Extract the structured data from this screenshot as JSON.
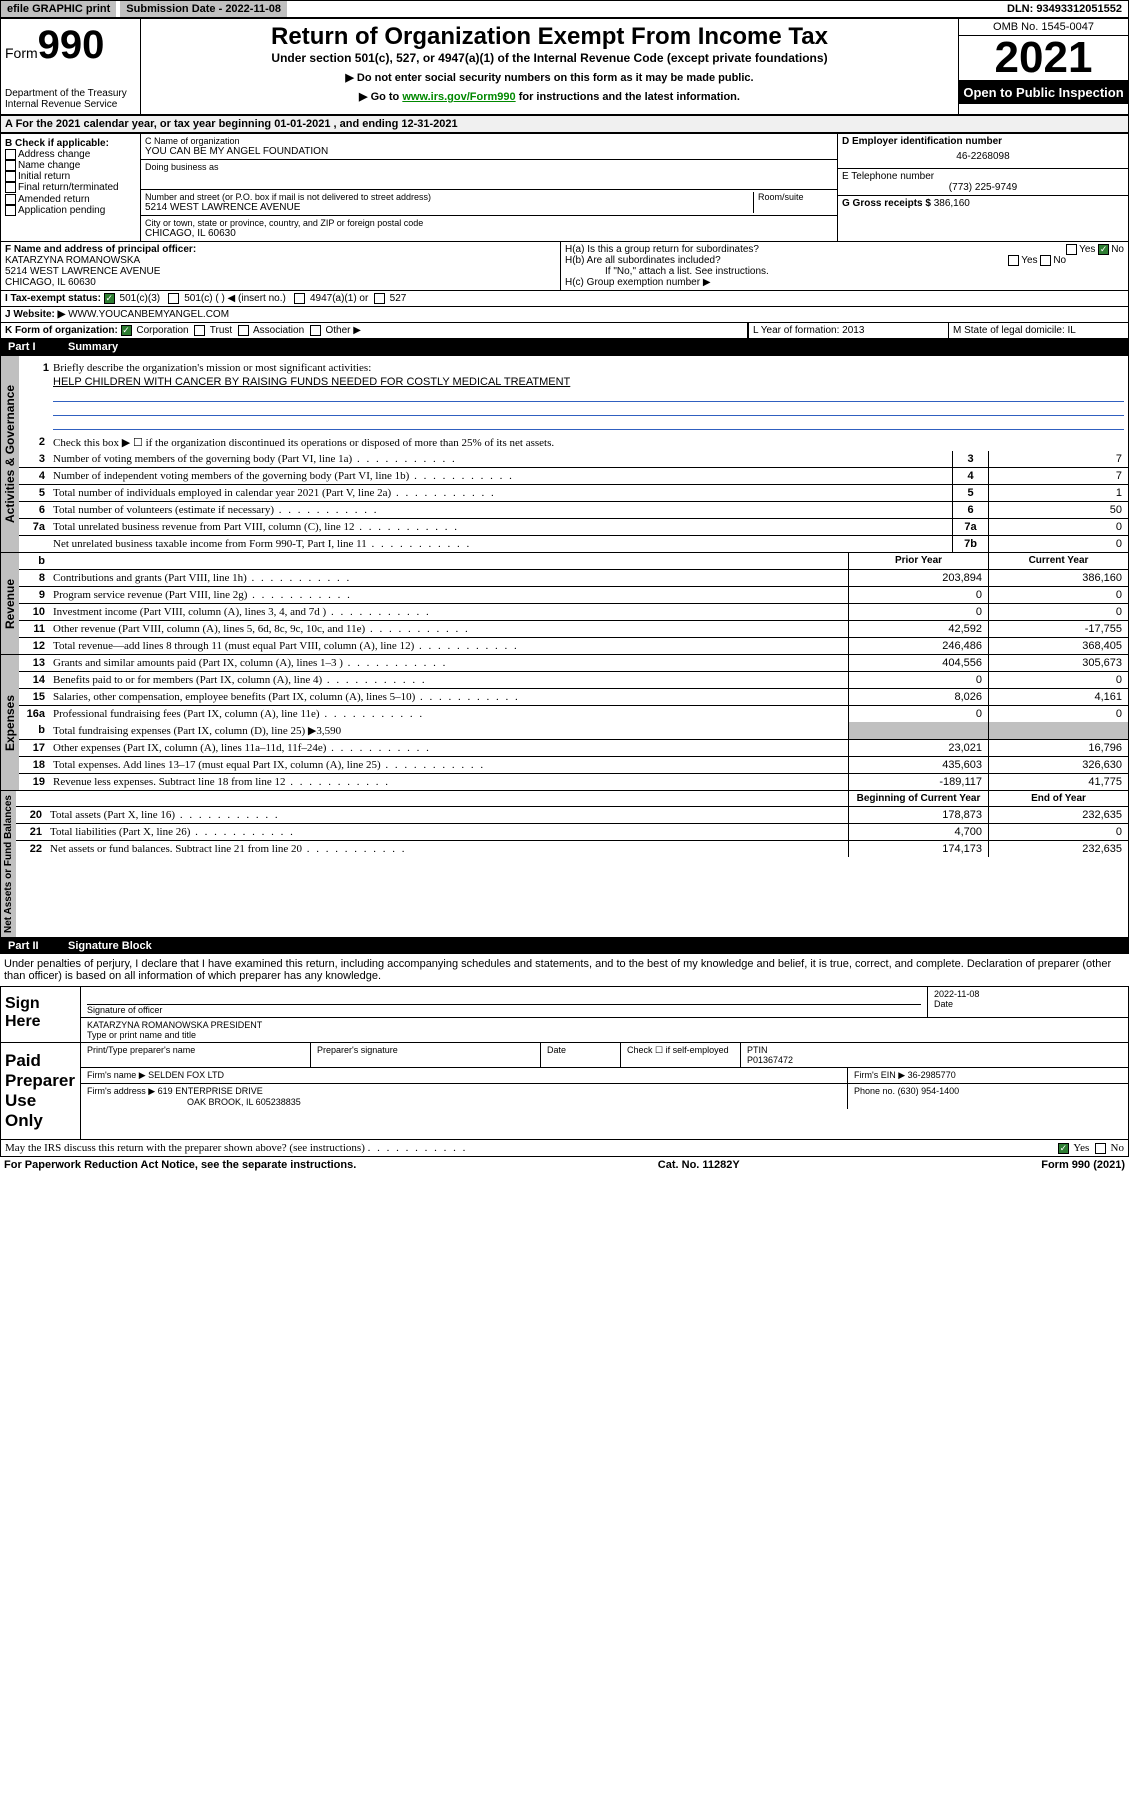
{
  "top": {
    "efile": "efile GRAPHIC print",
    "sub_label": "Submission Date - 2022-11-08",
    "dln": "DLN: 93493312051552"
  },
  "header": {
    "form_pre": "Form",
    "form_num": "990",
    "dept": "Department of the Treasury",
    "irs": "Internal Revenue Service",
    "title": "Return of Organization Exempt From Income Tax",
    "subtitle": "Under section 501(c), 527, or 4947(a)(1) of the Internal Revenue Code (except private foundations)",
    "nossn": "▶ Do not enter social security numbers on this form as it may be made public.",
    "goto_pre": "▶ Go to ",
    "goto_link": "www.irs.gov/Form990",
    "goto_post": " for instructions and the latest information.",
    "omb": "OMB No. 1545-0047",
    "year": "2021",
    "open": "Open to Public Inspection"
  },
  "row_a": "A For the 2021 calendar year, or tax year beginning 01-01-2021   , and ending 12-31-2021",
  "col_b": {
    "label": "B Check if applicable:",
    "items": [
      "Address change",
      "Name change",
      "Initial return",
      "Final return/terminated",
      "Amended return",
      "Application pending"
    ]
  },
  "col_c": {
    "name_label": "C Name of organization",
    "name": "YOU CAN BE MY ANGEL FOUNDATION",
    "dba_label": "Doing business as",
    "dba": "",
    "addr_label": "Number and street (or P.O. box if mail is not delivered to street address)",
    "room": "Room/suite",
    "addr": "5214 WEST LAWRENCE AVENUE",
    "city_label": "City or town, state or province, country, and ZIP or foreign postal code",
    "city": "CHICAGO, IL  60630"
  },
  "col_d": {
    "d_label": "D Employer identification number",
    "ein": "46-2268098",
    "e_label": "E Telephone number",
    "phone": "(773) 225-9749",
    "g_label": "G Gross receipts $",
    "gross": "386,160"
  },
  "row_f": {
    "f_label": "F Name and address of principal officer:",
    "officer": "KATARZYNA ROMANOWSKA",
    "officer_addr": "5214 WEST LAWRENCE AVENUE",
    "officer_city": "CHICAGO, IL  60630",
    "ha": "H(a)  Is this a group return for subordinates?",
    "ha_ans": "No",
    "hb": "H(b)  Are all subordinates included?",
    "hb_note": "If \"No,\" attach a list. See instructions.",
    "hc": "H(c)  Group exemption number ▶"
  },
  "row_i": {
    "label": "I    Tax-exempt status:",
    "c501c3": "501(c)(3)",
    "c501c": "501(c) (  ) ◀ (insert no.)",
    "c4947": "4947(a)(1) or",
    "c527": "527"
  },
  "row_j": {
    "label": "J   Website: ▶",
    "site": "WWW.YOUCANBEMYANGEL.COM"
  },
  "row_k": {
    "label": "K Form of organization:",
    "corp": "Corporation",
    "trust": "Trust",
    "assoc": "Association",
    "other": "Other ▶",
    "l_label": "L Year of formation: 2013",
    "m_label": "M State of legal domicile: IL"
  },
  "part1": {
    "title": "Part I",
    "name": "Summary",
    "activities_label": "Activities & Governance",
    "revenue_label": "Revenue",
    "expenses_label": "Expenses",
    "netassets_label": "Net Assets or Fund Balances",
    "q1": "Briefly describe the organization's mission or most significant activities:",
    "mission": "HELP CHILDREN WITH CANCER BY RAISING FUNDS NEEDED FOR COSTLY MEDICAL TREATMENT",
    "q2": "Check this box ▶ ☐  if the organization discontinued its operations or disposed of more than 25% of its net assets.",
    "lines": [
      {
        "n": "3",
        "d": "Number of voting members of the governing body (Part VI, line 1a)",
        "b": "3",
        "v": "7"
      },
      {
        "n": "4",
        "d": "Number of independent voting members of the governing body (Part VI, line 1b)",
        "b": "4",
        "v": "7"
      },
      {
        "n": "5",
        "d": "Total number of individuals employed in calendar year 2021 (Part V, line 2a)",
        "b": "5",
        "v": "1"
      },
      {
        "n": "6",
        "d": "Total number of volunteers (estimate if necessary)",
        "b": "6",
        "v": "50"
      },
      {
        "n": "7a",
        "d": "Total unrelated business revenue from Part VIII, column (C), line 12",
        "b": "7a",
        "v": "0"
      },
      {
        "n": "",
        "d": "Net unrelated business taxable income from Form 990-T, Part I, line 11",
        "b": "7b",
        "v": "0"
      }
    ],
    "head_b": "b",
    "head_prior": "Prior Year",
    "head_curr": "Current Year",
    "rev_lines": [
      {
        "n": "8",
        "d": "Contributions and grants (Part VIII, line 1h)",
        "p": "203,894",
        "c": "386,160"
      },
      {
        "n": "9",
        "d": "Program service revenue (Part VIII, line 2g)",
        "p": "0",
        "c": "0"
      },
      {
        "n": "10",
        "d": "Investment income (Part VIII, column (A), lines 3, 4, and 7d )",
        "p": "0",
        "c": "0"
      },
      {
        "n": "11",
        "d": "Other revenue (Part VIII, column (A), lines 5, 6d, 8c, 9c, 10c, and 11e)",
        "p": "42,592",
        "c": "-17,755"
      },
      {
        "n": "12",
        "d": "Total revenue—add lines 8 through 11 (must equal Part VIII, column (A), line 12)",
        "p": "246,486",
        "c": "368,405"
      }
    ],
    "exp_lines": [
      {
        "n": "13",
        "d": "Grants and similar amounts paid (Part IX, column (A), lines 1–3 )",
        "p": "404,556",
        "c": "305,673"
      },
      {
        "n": "14",
        "d": "Benefits paid to or for members (Part IX, column (A), line 4)",
        "p": "0",
        "c": "0"
      },
      {
        "n": "15",
        "d": "Salaries, other compensation, employee benefits (Part IX, column (A), lines 5–10)",
        "p": "8,026",
        "c": "4,161"
      },
      {
        "n": "16a",
        "d": "Professional fundraising fees (Part IX, column (A), line 11e)",
        "p": "0",
        "c": "0"
      }
    ],
    "exp_16b": {
      "n": "b",
      "d": "Total fundraising expenses (Part IX, column (D), line 25) ▶3,590"
    },
    "exp_lines2": [
      {
        "n": "17",
        "d": "Other expenses (Part IX, column (A), lines 11a–11d, 11f–24e)",
        "p": "23,021",
        "c": "16,796"
      },
      {
        "n": "18",
        "d": "Total expenses. Add lines 13–17 (must equal Part IX, column (A), line 25)",
        "p": "435,603",
        "c": "326,630"
      },
      {
        "n": "19",
        "d": "Revenue less expenses. Subtract line 18 from line 12",
        "p": "-189,117",
        "c": "41,775"
      }
    ],
    "na_head1": "Beginning of Current Year",
    "na_head2": "End of Year",
    "na_lines": [
      {
        "n": "20",
        "d": "Total assets (Part X, line 16)",
        "p": "178,873",
        "c": "232,635"
      },
      {
        "n": "21",
        "d": "Total liabilities (Part X, line 26)",
        "p": "4,700",
        "c": "0"
      },
      {
        "n": "22",
        "d": "Net assets or fund balances. Subtract line 21 from line 20",
        "p": "174,173",
        "c": "232,635"
      }
    ]
  },
  "part2": {
    "title": "Part II",
    "name": "Signature Block",
    "penalty": "Under penalties of perjury, I declare that I have examined this return, including accompanying schedules and statements, and to the best of my knowledge and belief, it is true, correct, and complete. Declaration of preparer (other than officer) is based on all information of which preparer has any knowledge.",
    "sign_here": "Sign Here",
    "sig_officer": "Signature of officer",
    "date": "Date",
    "sig_date_val": "2022-11-08",
    "officer_name": "KATARZYNA ROMANOWSKA  PRESIDENT",
    "type_name": "Type or print name and title",
    "paid": "Paid Preparer Use Only",
    "prep_name": "Print/Type preparer's name",
    "prep_sig": "Preparer's signature",
    "prep_date": "Date",
    "check_if": "Check ☐ if self-employed",
    "ptin_label": "PTIN",
    "ptin": "P01367472",
    "firm_name_label": "Firm's name   ▶",
    "firm_name": "SELDEN FOX LTD",
    "firm_ein_label": "Firm's EIN ▶",
    "firm_ein": "36-2985770",
    "firm_addr_label": "Firm's address ▶",
    "firm_addr": "619 ENTERPRISE DRIVE",
    "firm_city": "OAK BROOK, IL  605238835",
    "phone_label": "Phone no.",
    "phone": "(630) 954-1400",
    "discuss": "May the IRS discuss this return with the preparer shown above? (see instructions)",
    "discuss_ans": "Yes"
  },
  "footer": {
    "pra": "For Paperwork Reduction Act Notice, see the separate instructions.",
    "cat": "Cat. No. 11282Y",
    "form": "Form 990 (2021)"
  },
  "colors": {
    "link": "#008800",
    "check": "#2e7d32"
  }
}
